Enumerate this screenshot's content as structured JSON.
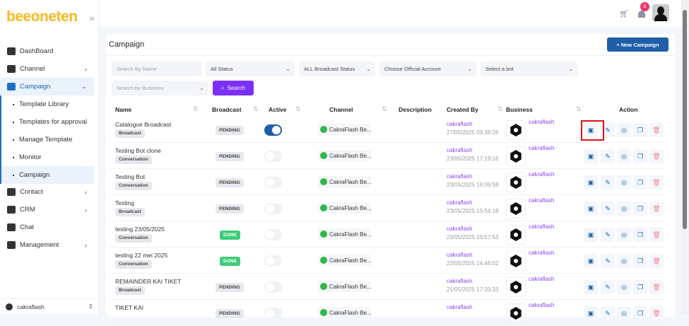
{
  "brand": {
    "logo": "beeoneten"
  },
  "sidebar": {
    "items": [
      {
        "label": "DashBoard",
        "icon": "grid-icon"
      },
      {
        "label": "Channel",
        "icon": "cloud-icon",
        "chevron": true
      },
      {
        "label": "Campaign",
        "icon": "document-icon",
        "chevron": true,
        "active": true
      },
      {
        "label": "Contact",
        "icon": "contact-icon",
        "chevron": true
      },
      {
        "label": "CRM",
        "icon": "users-icon",
        "chevron": true
      },
      {
        "label": "Chat",
        "icon": "chat-icon"
      },
      {
        "label": "Management",
        "icon": "menu-icon",
        "chevron": true
      }
    ],
    "sub_items": [
      "Template Library",
      "Templates for approval",
      "Manage Template",
      "Monitor",
      "Campaign"
    ],
    "active_sub": "Campaign",
    "user": "cakraflash"
  },
  "topbar": {
    "notifications": "6"
  },
  "page": {
    "title": "Campaign",
    "new_button": "+ New Campaign"
  },
  "filters": {
    "search_name": "Search By Name",
    "status": "All Status",
    "broadcast_status": "ALL Broadcast Status",
    "official_account": "Choose Official Account",
    "bot": "Select a bot",
    "business": "Search by Business",
    "search_button": "Search"
  },
  "table": {
    "headers": [
      "Name",
      "Broadcast",
      "Active",
      "Channel",
      "Description",
      "Created By",
      "Business",
      "Action"
    ],
    "rows": [
      {
        "name": "Catalogue Broadcast",
        "type": "Broadcast",
        "status": "PENDING",
        "active": true,
        "channel": "CakraFlash Be...",
        "created_by": "cakraflash",
        "date": "27/05/2025 09:38:26",
        "business": "cakraflash"
      },
      {
        "name": "Testing Bot clone",
        "type": "Conversation",
        "status": "PENDING",
        "active": false,
        "channel": "CakraFlash Be...",
        "created_by": "cakraflash",
        "date": "23/05/2025 17:19:16",
        "business": "cakraflash"
      },
      {
        "name": "Testing Bot",
        "type": "Conversation",
        "status": "PENDING",
        "active": false,
        "channel": "CakraFlash Be...",
        "created_by": "cakraflash",
        "date": "23/05/2025 16:09:58",
        "business": "cakraflash"
      },
      {
        "name": "Testing",
        "type": "Broadcast",
        "status": "PENDING",
        "active": false,
        "channel": "CakraFlash Be...",
        "created_by": "cakraflash",
        "date": "23/05/2025 15:54:18",
        "business": "cakraflash"
      },
      {
        "name": "testing 23/05/2025",
        "type": "Conversation",
        "status": "DONE",
        "active": false,
        "channel": "CakraFlash Be...",
        "created_by": "cakraflash",
        "date": "23/05/2025 10:57:53",
        "business": "cakraflash"
      },
      {
        "name": "testing 22 mei 2025",
        "type": "Conversation",
        "status": "DONE",
        "active": false,
        "channel": "CakraFlash Be...",
        "created_by": "cakraflash",
        "date": "22/05/2025 14:46:02",
        "business": "cakraflash"
      },
      {
        "name": "REMAINDER KAI TIKET",
        "type": "Broadcast",
        "status": "PENDING",
        "active": false,
        "channel": "CakraFlash Be...",
        "created_by": "cakraflash",
        "date": "21/05/2025 17:33:33",
        "business": "cakraflash"
      },
      {
        "name": "TIKET KAI",
        "type": "",
        "status": "PENDING",
        "active": false,
        "channel": "CakraFlash Be...",
        "created_by": "cakraflash",
        "date": "",
        "business": "cakraflash"
      }
    ],
    "actions": [
      "report-icon",
      "edit-icon",
      "send-icon",
      "copy-icon",
      "trash-icon"
    ]
  },
  "colors": {
    "primary": "#1f5fa8",
    "search": "#7b2ff7",
    "done": "#3fcc7a",
    "link": "#8a46f0",
    "highlight": "#e01010"
  }
}
